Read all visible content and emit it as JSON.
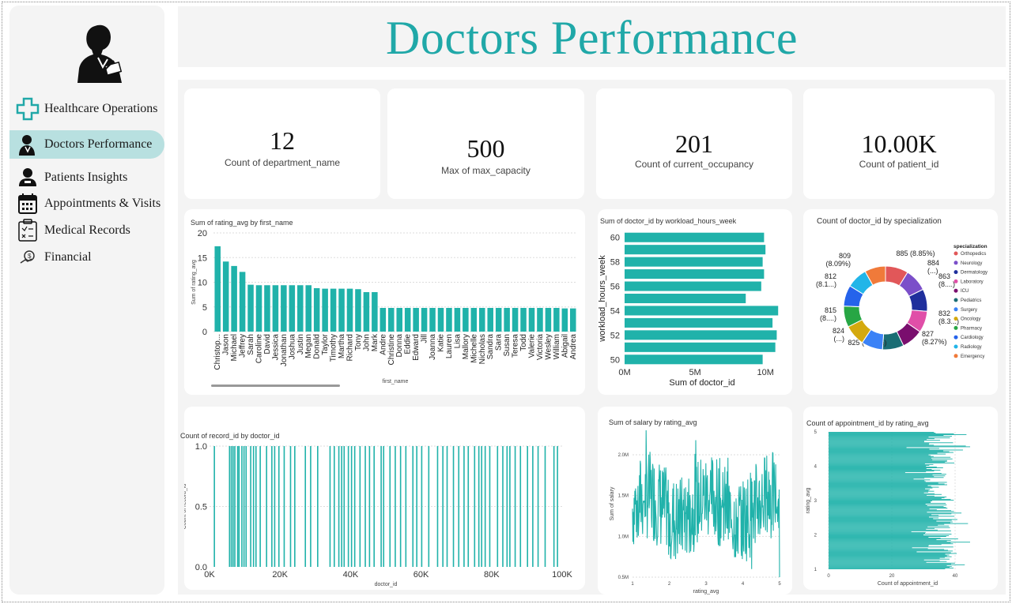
{
  "header": {
    "title": "Doctors Performance"
  },
  "sidebar": {
    "items": [
      {
        "label": "Healthcare Operations",
        "icon": "medical-cross-icon"
      },
      {
        "label": "Doctors Performance",
        "icon": "doctor-icon",
        "active": true
      },
      {
        "label": "Patients Insights",
        "icon": "patient-icon"
      },
      {
        "label": "Appointments & Visits",
        "icon": "calendar-icon"
      },
      {
        "label": "Medical Records",
        "icon": "clipboard-icon"
      },
      {
        "label": "Financial",
        "icon": "coin-icon"
      }
    ]
  },
  "kpis": [
    {
      "value": "12",
      "label": "Count of department_name"
    },
    {
      "value": "500",
      "label": "Max of max_capacity"
    },
    {
      "value": "201",
      "label": "Count of current_occupancy"
    },
    {
      "value": "10.00K",
      "label": "Count of patient_id"
    }
  ],
  "colors": {
    "accent": "#20a8a8",
    "bar": "#20b2aa"
  },
  "chart_data": [
    {
      "type": "bar",
      "title": "Sum of rating_avg by first_name",
      "xlabel": "first_name",
      "ylabel": "Sum of rating_avg",
      "ylim": [
        0,
        20
      ],
      "yticks": [
        "0",
        "5",
        "10",
        "15",
        "20"
      ],
      "categories": [
        "Christop...",
        "Jason",
        "Michael",
        "Jeffrey",
        "Sarah",
        "Caroline",
        "David",
        "Jessica",
        "Jonathan",
        "Joshua",
        "Justin",
        "Megan",
        "Donald",
        "Taylor",
        "Timothy",
        "Martha",
        "Richard",
        "Tony",
        "John",
        "Mark",
        "Andre",
        "Christine",
        "Donna",
        "Eddie",
        "Edward",
        "Jill",
        "Joanna",
        "Katie",
        "Lauren",
        "Lisa",
        "Mallory",
        "Michelle",
        "Nicholas",
        "Sandra",
        "Sara",
        "Susan",
        "Teresa",
        "Todd",
        "Valerie",
        "Victoria",
        "Wesley",
        "William",
        "Abigail",
        "Andrea"
      ],
      "values": [
        17.3,
        14.2,
        13.3,
        12.1,
        9.5,
        9.4,
        9.4,
        9.4,
        9.4,
        9.4,
        9.4,
        9.4,
        8.8,
        8.7,
        8.7,
        8.7,
        8.7,
        8.6,
        8.0,
        8.0,
        4.8,
        4.8,
        4.8,
        4.8,
        4.8,
        4.8,
        4.8,
        4.8,
        4.8,
        4.8,
        4.8,
        4.8,
        4.8,
        4.8,
        4.8,
        4.8,
        4.8,
        4.8,
        4.8,
        4.8,
        4.8,
        4.8,
        4.7,
        4.7
      ]
    },
    {
      "type": "bar",
      "orientation": "horizontal",
      "title": "Sum of doctor_id by workload_hours_week",
      "xlabel": "Sum of doctor_id",
      "ylabel": "workload_hours_week",
      "xticks": [
        "0M",
        "5M",
        "10M"
      ],
      "xlim": [
        0,
        11000000
      ],
      "categories": [
        "60",
        "59",
        "58",
        "57",
        "56",
        "55",
        "54",
        "53",
        "52",
        "51",
        "50"
      ],
      "yticks": [
        "60",
        "58",
        "56",
        "54",
        "52",
        "50"
      ],
      "values": [
        9900000,
        10000000,
        9800000,
        9900000,
        9700000,
        8600000,
        10900000,
        10500000,
        10800000,
        10700000,
        9800000
      ]
    },
    {
      "type": "pie",
      "title": "Count of doctor_id by specialization",
      "legend_title": "specialization",
      "legend": "right",
      "slices": [
        {
          "name": "Orthopedics",
          "value": 885,
          "label": "885 (8.85%)",
          "color": "#e15759"
        },
        {
          "name": "Neurology",
          "value": 884,
          "label": "884 (...)",
          "color": "#7b4fc9"
        },
        {
          "name": "Dermatology",
          "value": 863,
          "label": "863 (8....)",
          "color": "#1f2f9c"
        },
        {
          "name": "Laboratory",
          "value": 832,
          "label": "832 (8.3...)",
          "color": "#e04fa8"
        },
        {
          "name": "ICU",
          "value": 827,
          "label": "827 (8.27%)",
          "color": "#7a0e6e"
        },
        {
          "name": "Pediatrics",
          "value": 825,
          "label": "825 (8.25%)",
          "color": "#1a6d74"
        },
        {
          "name": "Surgery",
          "value": 824,
          "label": "824 (...)",
          "color": "#3b82f6"
        },
        {
          "name": "Oncology",
          "value": 815,
          "label": "815 (8....)",
          "color": "#d4a90e"
        },
        {
          "name": "Pharmacy",
          "value": 815,
          "label": "",
          "color": "#27a644"
        },
        {
          "name": "Cardiology",
          "value": 812,
          "label": "812 (8.1...)",
          "color": "#2563eb"
        },
        {
          "name": "Radiology",
          "value": 809,
          "label": "809 (8.09%)",
          "color": "#22b5e8"
        },
        {
          "name": "Emergency",
          "value": 809,
          "label": "",
          "color": "#f07a3a"
        }
      ]
    },
    {
      "type": "bar",
      "title": "Count of record_id by doctor_id",
      "xlabel": "doctor_id",
      "ylabel": "Count of record_id",
      "ylim": [
        0,
        1
      ],
      "yticks": [
        "0.0",
        "0.5",
        "1.0"
      ],
      "xticks": [
        "0K",
        "20K",
        "40K",
        "60K",
        "80K",
        "100K"
      ],
      "xlim": [
        0,
        100000
      ],
      "positions": [
        1200,
        5500,
        6000,
        6500,
        7000,
        7800,
        8200,
        9000,
        9600,
        10200,
        11500,
        12300,
        13000,
        14200,
        16000,
        17500,
        18300,
        19500,
        21000,
        22800,
        24000,
        27000,
        28500,
        30500,
        34000,
        35200,
        36500,
        37300,
        38000,
        39200,
        40100,
        41000,
        42500,
        44000,
        45200,
        46500,
        48500,
        49200,
        51000,
        52500,
        54000,
        55500,
        57500,
        58600,
        60000,
        62000,
        64500,
        66000,
        67200,
        69000,
        70500,
        72000,
        73200,
        75000,
        76200,
        77000,
        78000,
        79300,
        81500,
        83000,
        84200,
        85000,
        86500,
        88000,
        90000,
        91500,
        93000,
        95000,
        97500,
        98500
      ],
      "value": 1
    },
    {
      "type": "line",
      "title": "Sum of salary by rating_avg",
      "xlabel": "rating_avg",
      "ylabel": "Sum of salary",
      "xlim": [
        1,
        5
      ],
      "ylim": [
        0.5,
        2.3
      ],
      "xticks": [
        "1",
        "2",
        "3",
        "4",
        "5"
      ],
      "yticks": [
        "0.5M",
        "1.0M",
        "1.5M",
        "2.0M"
      ],
      "note": "noisy series oscillating roughly between 0.6M and 2.3M"
    },
    {
      "type": "bar",
      "orientation": "horizontal",
      "title": "Count of appointment_id by rating_avg",
      "xlabel": "Count of appointment_id",
      "ylabel": "rating_avg",
      "xticks": [
        "0",
        "20",
        "40"
      ],
      "yticks": [
        "1",
        "2",
        "3",
        "4",
        "5"
      ],
      "xlim": [
        0,
        50
      ],
      "ylim": [
        1,
        5
      ],
      "note": "dense bars, values roughly between 25 and 45"
    }
  ]
}
